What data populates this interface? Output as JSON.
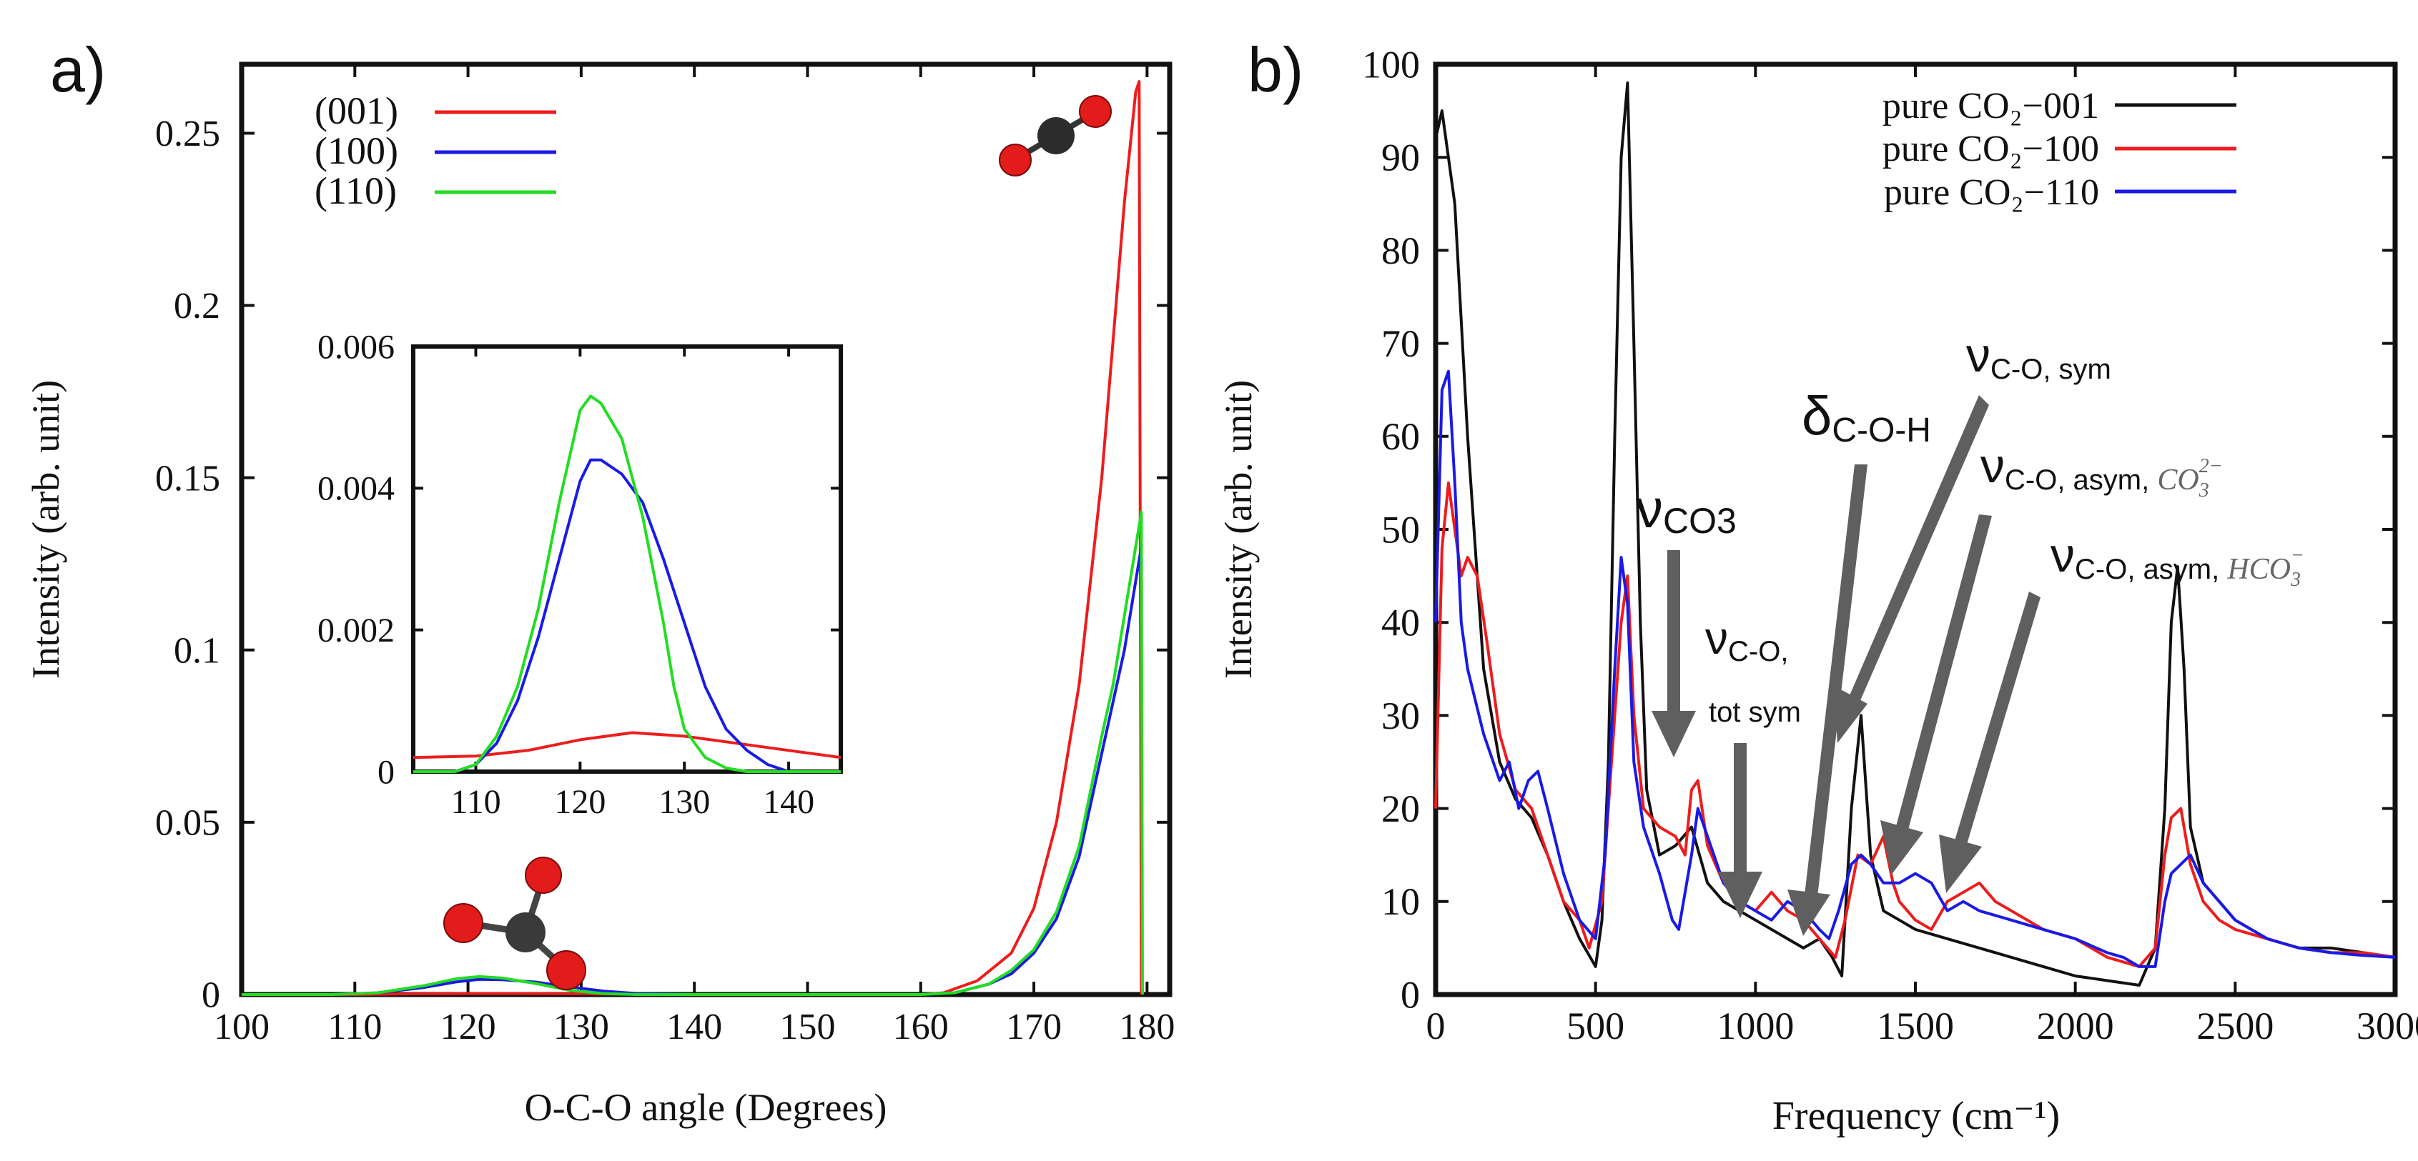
{
  "figure": {
    "panel_a_label": "a)",
    "panel_b_label": "b)"
  },
  "chart_data": [
    {
      "id": "a",
      "type": "line",
      "title": "",
      "xlabel": "O-C-O angle (Degrees)",
      "ylabel": "Intensity (arb. unit)",
      "xlim": [
        100,
        182
      ],
      "ylim": [
        0,
        0.27
      ],
      "xticks": [
        100,
        110,
        120,
        130,
        140,
        150,
        160,
        170,
        180
      ],
      "yticks": [
        0,
        0.05,
        0.1,
        0.15,
        0.2,
        0.25
      ],
      "ytick_labels": [
        "0",
        "0.05",
        "0.1",
        "0.15",
        "0.2",
        "0.25"
      ],
      "legend": [
        "(001)",
        "(100)",
        "(110)"
      ],
      "legend_position": "top-left",
      "series": [
        {
          "name": "(001)",
          "color": "#ee1c1c",
          "x": [
            100,
            110,
            115,
            120,
            125,
            130,
            140,
            150,
            160,
            162,
            165,
            168,
            170,
            172,
            174,
            176,
            177,
            178,
            179,
            179.3,
            179.5
          ],
          "y": [
            0,
            0,
            0.0002,
            0.0003,
            0.0003,
            0.0002,
            0,
            0,
            0,
            0.0005,
            0.004,
            0.012,
            0.025,
            0.05,
            0.09,
            0.15,
            0.19,
            0.23,
            0.262,
            0.265,
            0
          ]
        },
        {
          "name": "(100)",
          "color": "#1a1ae6",
          "x": [
            100,
            108,
            112,
            116,
            119,
            121,
            123,
            126,
            129,
            132,
            135,
            140,
            160,
            163,
            166,
            168,
            170,
            172,
            174,
            176,
            177,
            178,
            179,
            179.5
          ],
          "y": [
            0,
            0,
            0.0005,
            0.002,
            0.0037,
            0.0044,
            0.0043,
            0.0036,
            0.0022,
            0.001,
            0.0003,
            0,
            0,
            0.0005,
            0.003,
            0.006,
            0.012,
            0.022,
            0.04,
            0.07,
            0.085,
            0.1,
            0.12,
            0.13
          ]
        },
        {
          "name": "(110)",
          "color": "#22dd22",
          "x": [
            100,
            108,
            112,
            116,
            119,
            121,
            123,
            126,
            129,
            132,
            135,
            140,
            160,
            163,
            166,
            168,
            170,
            172,
            174,
            176,
            177,
            178,
            179,
            179.5,
            179.6
          ],
          "y": [
            0,
            0,
            0.0005,
            0.0025,
            0.0046,
            0.0052,
            0.0048,
            0.0032,
            0.0012,
            0.0003,
            0,
            0,
            0,
            0.0005,
            0.003,
            0.007,
            0.013,
            0.024,
            0.043,
            0.075,
            0.09,
            0.11,
            0.13,
            0.14,
            0
          ]
        }
      ]
    },
    {
      "id": "a-inset",
      "type": "line",
      "title": "",
      "xlabel": "",
      "ylabel": "",
      "xlim": [
        104,
        145
      ],
      "ylim": [
        0,
        0.006
      ],
      "xticks": [
        110,
        120,
        130,
        140
      ],
      "yticks": [
        0,
        0.002,
        0.004,
        0.006
      ],
      "ytick_labels": [
        "0",
        "0.002",
        "0.004",
        "0.006"
      ],
      "series": [
        {
          "name": "(001)",
          "color": "#ee1c1c",
          "x": [
            104,
            110,
            115,
            120,
            125,
            130,
            135,
            140,
            145
          ],
          "y": [
            0.0002,
            0.00022,
            0.0003,
            0.00045,
            0.00055,
            0.0005,
            0.0004,
            0.0003,
            0.0002
          ]
        },
        {
          "name": "(100)",
          "color": "#1a1ae6",
          "x": [
            104,
            108,
            110,
            112,
            114,
            116,
            118,
            120,
            121,
            122,
            124,
            126,
            128,
            130,
            132,
            134,
            136,
            138,
            140,
            142,
            145
          ],
          "y": [
            0,
            0,
            0.0001,
            0.0004,
            0.001,
            0.0019,
            0.003,
            0.0041,
            0.0044,
            0.0044,
            0.0042,
            0.0038,
            0.003,
            0.0021,
            0.0012,
            0.0006,
            0.0003,
            0.0001,
            0,
            0,
            0
          ]
        },
        {
          "name": "(110)",
          "color": "#22dd22",
          "x": [
            104,
            108,
            110,
            112,
            114,
            116,
            118,
            120,
            121,
            122,
            124,
            126,
            128,
            129,
            130,
            132,
            134,
            136,
            140,
            145
          ],
          "y": [
            0,
            0,
            0.0001,
            0.0005,
            0.0012,
            0.0023,
            0.0038,
            0.0051,
            0.0053,
            0.0052,
            0.0047,
            0.0036,
            0.0021,
            0.0012,
            0.0006,
            0.0002,
            5e-05,
            0,
            0,
            0
          ]
        }
      ]
    },
    {
      "id": "b",
      "type": "line",
      "title": "",
      "xlabel": "Frequency (cm⁻¹)",
      "ylabel": "Intensity (arb. unit)",
      "xlim": [
        0,
        3000
      ],
      "ylim": [
        0,
        100
      ],
      "xticks": [
        0,
        500,
        1000,
        1500,
        2000,
        2500,
        3000
      ],
      "yticks": [
        0,
        10,
        20,
        30,
        40,
        50,
        60,
        70,
        80,
        90,
        100
      ],
      "ytick_labels": [
        "0",
        "10",
        "20",
        "30",
        "40",
        "50",
        "60",
        "70",
        "80",
        "90",
        "100"
      ],
      "legend": [
        "pure CO₂−001",
        "pure CO₂−100",
        "pure CO₂−110"
      ],
      "legend_position": "top-right",
      "series": [
        {
          "name": "pure CO₂−001",
          "color": "#111111",
          "x": [
            0,
            20,
            60,
            100,
            150,
            200,
            250,
            300,
            350,
            400,
            450,
            500,
            520,
            540,
            560,
            580,
            600,
            620,
            640,
            660,
            700,
            750,
            800,
            850,
            900,
            950,
            1000,
            1100,
            1150,
            1200,
            1240,
            1270,
            1300,
            1330,
            1360,
            1400,
            1450,
            1500,
            1600,
            1700,
            1800,
            1900,
            2000,
            2100,
            2200,
            2250,
            2280,
            2300,
            2320,
            2340,
            2360,
            2400,
            2450,
            2500,
            2600,
            2700,
            2800,
            2900,
            3000
          ],
          "y": [
            92,
            95,
            85,
            60,
            35,
            25,
            21,
            19,
            15,
            10,
            6,
            3,
            8,
            25,
            60,
            90,
            98,
            70,
            40,
            22,
            15,
            16,
            18,
            12,
            10,
            9,
            8,
            6,
            5,
            6,
            4,
            2,
            20,
            30,
            15,
            9,
            8,
            7,
            6,
            5,
            4,
            3,
            2,
            1.5,
            1,
            5,
            20,
            40,
            46,
            35,
            18,
            12,
            10,
            8,
            6,
            5,
            5,
            4.5,
            4
          ]
        },
        {
          "name": "pure CO₂−100",
          "color": "#ee1c1c",
          "x": [
            0,
            20,
            40,
            60,
            80,
            100,
            130,
            160,
            200,
            250,
            300,
            350,
            400,
            450,
            480,
            520,
            550,
            580,
            600,
            620,
            650,
            700,
            750,
            780,
            800,
            820,
            850,
            900,
            950,
            1000,
            1050,
            1100,
            1150,
            1200,
            1250,
            1280,
            1320,
            1360,
            1400,
            1430,
            1450,
            1500,
            1550,
            1600,
            1650,
            1700,
            1750,
            1800,
            1900,
            2000,
            2100,
            2200,
            2250,
            2280,
            2300,
            2330,
            2360,
            2400,
            2450,
            2500,
            2600,
            2700,
            2800,
            2900,
            3000
          ],
          "y": [
            20,
            48,
            55,
            50,
            45,
            47,
            45,
            38,
            28,
            22,
            20,
            15,
            10,
            8,
            5,
            10,
            25,
            40,
            45,
            30,
            20,
            18,
            17,
            15,
            22,
            23,
            16,
            12,
            10,
            9,
            11,
            9,
            8,
            6,
            4,
            8,
            15,
            14,
            17,
            12,
            10,
            8,
            7,
            10,
            11,
            12,
            10,
            9,
            7,
            6,
            4,
            3,
            5,
            15,
            19,
            20,
            14,
            10,
            8,
            7,
            6,
            5,
            4.5,
            4.5,
            4
          ]
        },
        {
          "name": "pure CO₂−110",
          "color": "#1a1ae6",
          "x": [
            0,
            20,
            40,
            60,
            80,
            100,
            150,
            200,
            230,
            260,
            290,
            320,
            350,
            400,
            450,
            500,
            530,
            560,
            580,
            600,
            620,
            650,
            700,
            740,
            760,
            800,
            820,
            860,
            900,
            950,
            1000,
            1050,
            1100,
            1150,
            1200,
            1230,
            1260,
            1300,
            1330,
            1360,
            1400,
            1450,
            1500,
            1550,
            1600,
            1650,
            1700,
            1800,
            1900,
            2000,
            2100,
            2150,
            2200,
            2250,
            2280,
            2300,
            2330,
            2360,
            2400,
            2450,
            2500,
            2600,
            2700,
            2800,
            2900,
            3000
          ],
          "y": [
            40,
            65,
            67,
            55,
            40,
            35,
            28,
            23,
            25,
            20,
            23,
            24,
            20,
            13,
            8,
            6,
            15,
            35,
            47,
            42,
            25,
            18,
            13,
            8,
            7,
            15,
            20,
            16,
            12,
            10,
            9,
            8,
            10,
            9,
            7,
            6,
            9,
            14,
            15,
            14,
            12,
            12,
            13,
            12,
            9,
            10,
            9,
            8,
            7,
            6,
            4.5,
            4,
            3,
            3,
            10,
            13,
            14,
            15,
            12,
            10,
            8,
            6,
            5,
            4.5,
            4.2,
            4
          ]
        }
      ],
      "annotations": [
        {
          "text": "ν",
          "sub": "CO3",
          "target_x": 800,
          "target_y": 23
        },
        {
          "text": "ν",
          "sub": "C-O,",
          "sub2": "tot sym",
          "target_x": 1020,
          "target_y": 10
        },
        {
          "text": "δ",
          "sub": "C-O-H",
          "target_x": 1180,
          "target_y": 8
        },
        {
          "text": "ν",
          "sub": "C-O, sym",
          "target_x": 1340,
          "target_y": 31
        },
        {
          "text": "ν",
          "sub": "C-O, asym, ",
          "ion": "CO",
          "ion_sub": "3",
          "ion_sup": "2−",
          "target_x": 1490,
          "target_y": 13
        },
        {
          "text": "ν",
          "sub": "C-O, asym, ",
          "ion": "HCO",
          "ion_sub": "3",
          "ion_sup": "−",
          "target_x": 1660,
          "target_y": 11
        }
      ]
    }
  ]
}
